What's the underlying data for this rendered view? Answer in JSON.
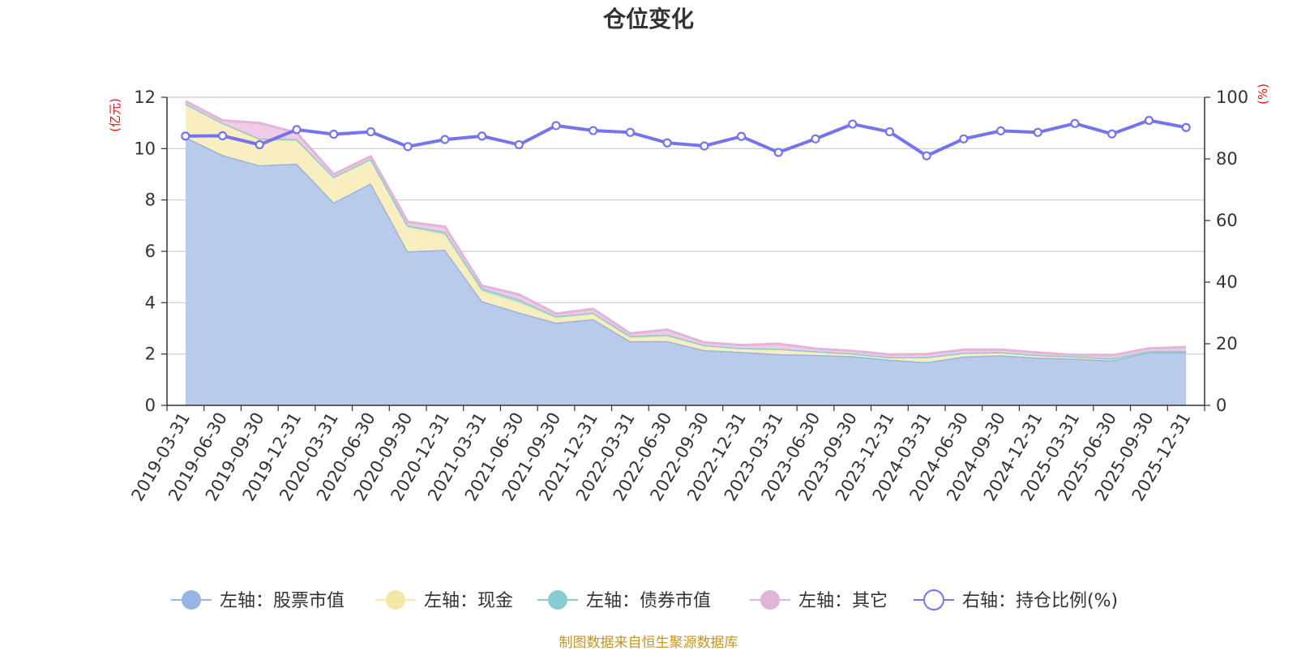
{
  "title": "仓位变化",
  "source": "制图数据来自恒生聚源数据库",
  "chart_data": {
    "type": "area",
    "categories": [
      "2019-03-31",
      "2019-06-30",
      "2019-09-30",
      "2019-12-31",
      "2020-03-31",
      "2020-06-30",
      "2020-09-30",
      "2020-12-31",
      "2021-03-31",
      "2021-06-30",
      "2021-09-30",
      "2021-12-31",
      "2022-03-31",
      "2022-06-30",
      "2022-09-30",
      "2022-12-31",
      "2023-03-31",
      "2023-06-30",
      "2023-09-30",
      "2023-12-31",
      "2024-03-31",
      "2024-06-30",
      "2024-09-30",
      "2024-12-31",
      "2025-03-31",
      "2025-06-30",
      "2025-09-30",
      "2025-12-31"
    ],
    "left_axis": {
      "unit": "(亿元)",
      "ylim": [
        0,
        12
      ],
      "ticks": [
        0,
        2,
        4,
        6,
        8,
        10,
        12
      ]
    },
    "right_axis": {
      "unit": "(%)",
      "ylim": [
        0,
        100
      ],
      "ticks": [
        0,
        20,
        40,
        60,
        80,
        100
      ]
    },
    "stacked": true,
    "grid": true,
    "legend_position": "bottom",
    "series": [
      {
        "name": "左轴：股票市值",
        "axis": "left",
        "type": "area",
        "color": "#98b4e0",
        "fill": "#b8cbea",
        "values": [
          10.45,
          9.75,
          9.35,
          9.42,
          7.9,
          8.65,
          6.0,
          6.06,
          4.06,
          3.62,
          3.22,
          3.36,
          2.5,
          2.5,
          2.15,
          2.08,
          2.0,
          1.96,
          1.92,
          1.78,
          1.68,
          1.9,
          1.95,
          1.86,
          1.82,
          1.75,
          2.07,
          2.07
        ]
      },
      {
        "name": "左轴：现金",
        "axis": "left",
        "type": "area",
        "color": "#f3e7a8",
        "fill": "#f8eec0",
        "values": [
          1.3,
          1.25,
          1.0,
          0.9,
          1.0,
          0.95,
          0.95,
          0.6,
          0.4,
          0.4,
          0.2,
          0.2,
          0.15,
          0.2,
          0.2,
          0.15,
          0.2,
          0.15,
          0.1,
          0.1,
          0.2,
          0.15,
          0.12,
          0.1,
          0.08,
          0.08,
          0.05,
          0.05
        ]
      },
      {
        "name": "左轴：债券市值",
        "axis": "left",
        "type": "area",
        "color": "#88ccd0",
        "fill": "#a9dcd6",
        "values": [
          0.0,
          0.0,
          0.05,
          0.05,
          0.0,
          0.0,
          0.05,
          0.1,
          0.1,
          0.1,
          0.05,
          0.05,
          0.05,
          0.05,
          0.0,
          0.0,
          0.0,
          0.0,
          0.0,
          0.0,
          0.0,
          0.0,
          0.0,
          0.0,
          0.0,
          0.0,
          0.0,
          0.0
        ]
      },
      {
        "name": "左轴：其它",
        "axis": "left",
        "type": "area",
        "color": "#e2b4da",
        "fill": "#efcbe6",
        "values": [
          0.1,
          0.1,
          0.6,
          0.25,
          0.1,
          0.1,
          0.15,
          0.2,
          0.1,
          0.2,
          0.1,
          0.15,
          0.1,
          0.2,
          0.1,
          0.12,
          0.2,
          0.1,
          0.1,
          0.1,
          0.12,
          0.12,
          0.1,
          0.1,
          0.06,
          0.12,
          0.1,
          0.15
        ]
      },
      {
        "name": "右轴：持仓比例(%)",
        "axis": "right",
        "type": "line",
        "color": "#7474ee",
        "values": [
          87.4,
          87.5,
          84.6,
          89.5,
          88.0,
          88.8,
          84.0,
          86.3,
          87.4,
          84.6,
          90.8,
          89.2,
          88.6,
          85.2,
          84.2,
          87.3,
          82.1,
          86.5,
          91.3,
          88.8,
          81.0,
          86.5,
          89.1,
          88.6,
          91.5,
          88.1,
          92.5,
          90.2
        ]
      }
    ]
  }
}
